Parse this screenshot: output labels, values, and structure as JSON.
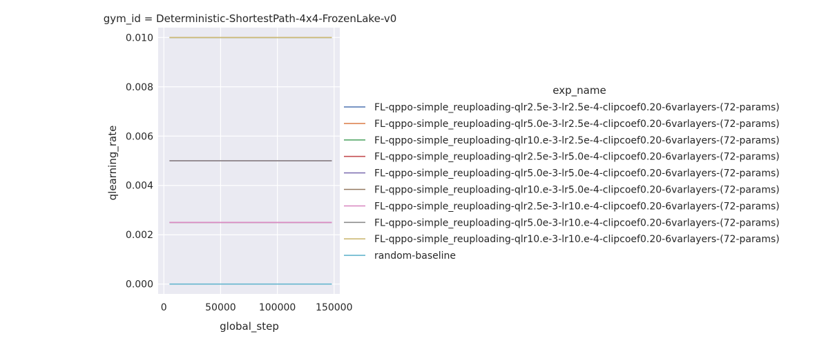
{
  "chart_data": {
    "type": "line",
    "title": "gym_id = Deterministic-ShortestPath-4x4-FrozenLake-v0",
    "xlabel": "global_step",
    "ylabel": "qlearning_rate",
    "xlim": [
      -5000,
      155000
    ],
    "ylim": [
      -0.0004,
      0.0104
    ],
    "xticks": [
      0,
      50000,
      100000,
      150000
    ],
    "xtick_labels": [
      "0",
      "50000",
      "100000",
      "150000"
    ],
    "yticks": [
      0.0,
      0.002,
      0.004,
      0.006,
      0.008,
      0.01
    ],
    "ytick_labels": [
      "0.000",
      "0.002",
      "0.004",
      "0.006",
      "0.008",
      "0.010"
    ],
    "grid": true,
    "legend_title": "exp_name",
    "legend_position": "right",
    "series": [
      {
        "name": "FL-qppo-simple_reuploading-qlr2.5e-3-lr2.5e-4-clipcoef0.20-6varlayers-(72-params)",
        "color": "#4c72b0",
        "x": [
          5000,
          148000
        ],
        "y": [
          0.0025,
          0.0025
        ]
      },
      {
        "name": "FL-qppo-simple_reuploading-qlr5.0e-3-lr2.5e-4-clipcoef0.20-6varlayers-(72-params)",
        "color": "#dd8452",
        "x": [
          5000,
          148000
        ],
        "y": [
          0.005,
          0.005
        ]
      },
      {
        "name": "FL-qppo-simple_reuploading-qlr10.e-3-lr2.5e-4-clipcoef0.20-6varlayers-(72-params)",
        "color": "#55a868",
        "x": [
          5000,
          148000
        ],
        "y": [
          0.01,
          0.01
        ]
      },
      {
        "name": "FL-qppo-simple_reuploading-qlr2.5e-3-lr5.0e-4-clipcoef0.20-6varlayers-(72-params)",
        "color": "#c44e52",
        "x": [
          5000,
          148000
        ],
        "y": [
          0.0025,
          0.0025
        ]
      },
      {
        "name": "FL-qppo-simple_reuploading-qlr5.0e-3-lr5.0e-4-clipcoef0.20-6varlayers-(72-params)",
        "color": "#8172b3",
        "x": [
          5000,
          148000
        ],
        "y": [
          0.005,
          0.005
        ]
      },
      {
        "name": "FL-qppo-simple_reuploading-qlr10.e-3-lr5.0e-4-clipcoef0.20-6varlayers-(72-params)",
        "color": "#937860",
        "x": [
          5000,
          148000
        ],
        "y": [
          0.01,
          0.01
        ]
      },
      {
        "name": "FL-qppo-simple_reuploading-qlr2.5e-3-lr10.e-4-clipcoef0.20-6varlayers-(72-params)",
        "color": "#da8bc3",
        "x": [
          5000,
          148000
        ],
        "y": [
          0.0025,
          0.0025
        ]
      },
      {
        "name": "FL-qppo-simple_reuploading-qlr5.0e-3-lr10.e-4-clipcoef0.20-6varlayers-(72-params)",
        "color": "#8c8c8c",
        "x": [
          5000,
          148000
        ],
        "y": [
          0.005,
          0.005
        ]
      },
      {
        "name": "FL-qppo-simple_reuploading-qlr10.e-3-lr10.e-4-clipcoef0.20-6varlayers-(72-params)",
        "color": "#ccb974",
        "x": [
          5000,
          148000
        ],
        "y": [
          0.01,
          0.01
        ]
      },
      {
        "name": "random-baseline",
        "color": "#64b5cd",
        "x": [
          5000,
          148000
        ],
        "y": [
          0.0,
          0.0
        ]
      }
    ]
  },
  "colors": {
    "plot_background": "#eaeaf2",
    "grid": "#ffffff",
    "text": "#262626"
  }
}
